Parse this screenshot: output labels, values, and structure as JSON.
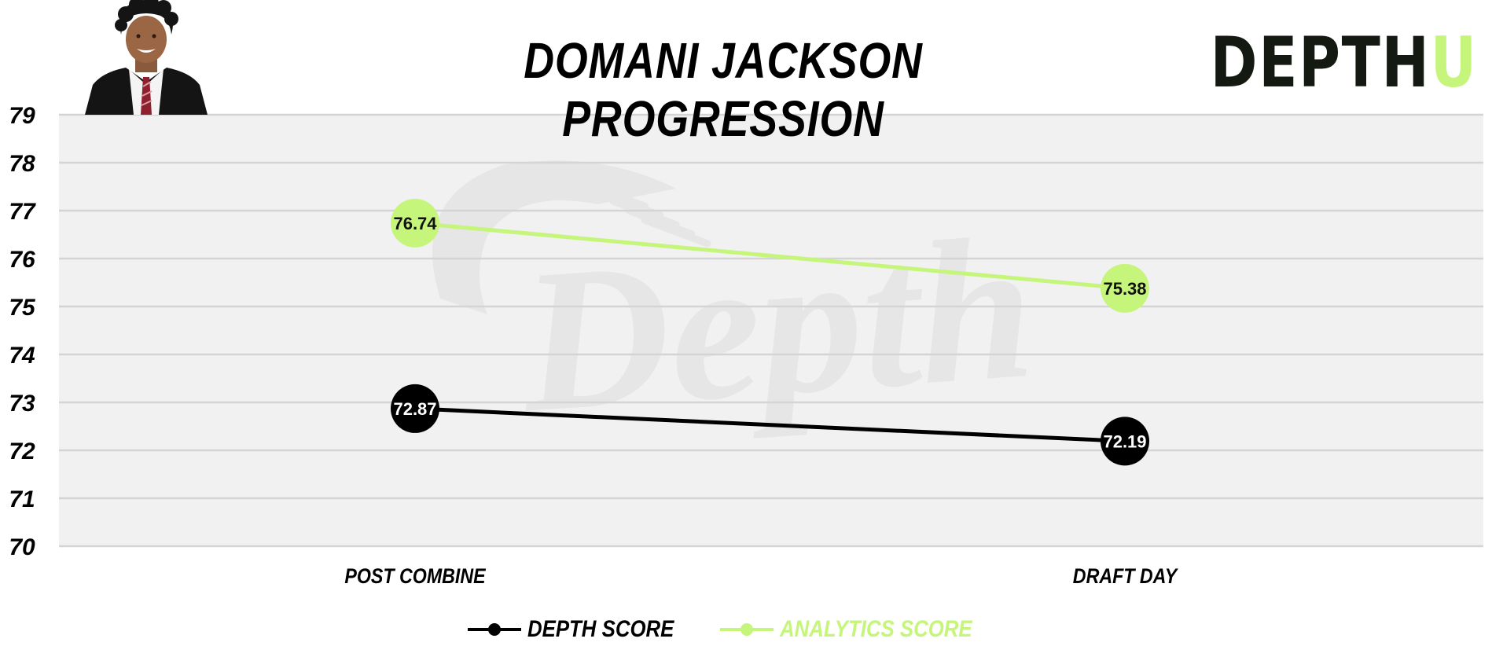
{
  "page": {
    "title": "DOMANI JACKSON PROGRESSION",
    "brand": {
      "part1": "DEPTH",
      "part2": "U"
    },
    "watermark": "Depth"
  },
  "colors": {
    "depth": "#000000",
    "analytics": "#c5f57a",
    "plot_bg": "#f1f1f1",
    "grid": "#d4d4d4",
    "watermark": "#e6e6e6"
  },
  "chart_data": {
    "type": "line",
    "title": "DOMANI JACKSON PROGRESSION",
    "categories": [
      "POST COMBINE",
      "DRAFT DAY"
    ],
    "series": [
      {
        "name": "DEPTH SCORE",
        "values": [
          72.87,
          72.19
        ],
        "labels": [
          "72.87",
          "72.19"
        ],
        "color": "#000000"
      },
      {
        "name": "ANALYTICS SCORE",
        "values": [
          76.74,
          75.38
        ],
        "labels": [
          "76.74",
          "75.38"
        ],
        "color": "#c5f57a"
      }
    ],
    "ylim": [
      70,
      79
    ],
    "yticks": [
      70,
      71,
      72,
      73,
      74,
      75,
      76,
      77,
      78,
      79
    ],
    "grid": true,
    "legend": "bottom-center"
  }
}
